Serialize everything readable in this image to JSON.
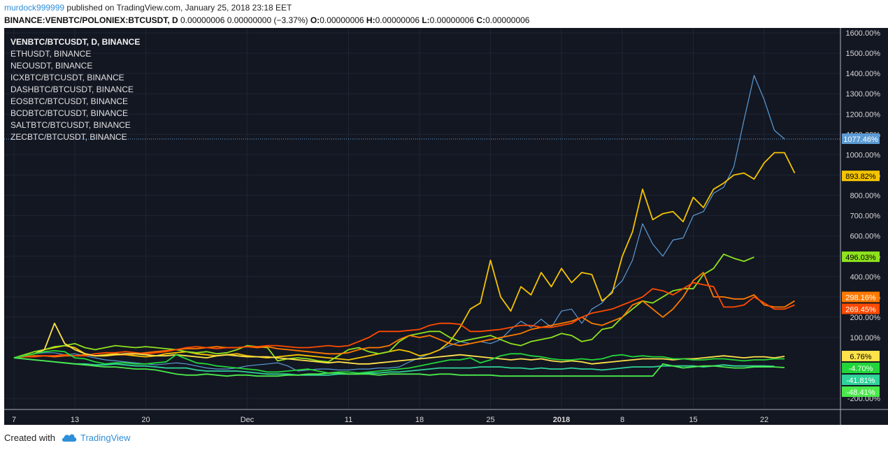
{
  "header": {
    "user": "murdock999999",
    "published_text": " published on TradingView.com, January 25, 2018 23:18 EET",
    "symbol": "BINANCE:VENBTC/POLONIEX:BTCUSDT, D",
    "values": " 0.00000006 0.00000000 (−3.37%) ",
    "ohlc": [
      {
        "k": "O:",
        "v": "0.00000006 "
      },
      {
        "k": "H:",
        "v": "0.00000006 "
      },
      {
        "k": "L:",
        "v": "0.00000006 "
      },
      {
        "k": "C:",
        "v": "0.00000006"
      }
    ]
  },
  "footer": {
    "created_with": "Created with",
    "brand": "TradingView"
  },
  "colors": {
    "background": "#131722",
    "grid": "#1f2434",
    "axis_text": "#d9d9d9",
    "ven": "#5b9bd5",
    "eth": "#f5c400",
    "neo": "#8ee21e",
    "icx": "#ff7a00",
    "dash": "#ff4a00",
    "eos": "#ffe24a",
    "bcd": "#22d63a",
    "salt": "#2fd39a",
    "zec": "#4bea4b"
  },
  "chart_data": {
    "type": "line",
    "legend_position": "top-left",
    "legend": [
      "VENBTC/BTCUSDT, D, BINANCE",
      "ETHUSDT, BINANCE",
      "NEOUSDT, BINANCE",
      "ICXBTC/BTCUSDT, BINANCE",
      "DASHBTC/BTCUSDT, BINANCE",
      "EOSBTC/BTCUSDT, BINANCE",
      "BCDBTC/BTCUSDT, BINANCE",
      "SALTBTC/BTCUSDT, BINANCE",
      "ZECBTC/BTCUSDT, BINANCE"
    ],
    "ylim": [
      -200,
      1600
    ],
    "y_ticks": [
      -200,
      100,
      200,
      300,
      400,
      500,
      600,
      700,
      800,
      900,
      1000,
      1100,
      1200,
      1300,
      1400,
      1500,
      1600
    ],
    "y_tick_labels": [
      "-200.00%",
      "100.00%",
      "200.00%",
      "300.00%",
      "400.00%",
      "500.00%",
      "600.00%",
      "700.00%",
      "800.00%",
      "900.00%",
      "1000.00%",
      "1100.00%",
      "1200.00%",
      "1300.00%",
      "1400.00%",
      "1500.00%",
      "1600.00%"
    ],
    "x_range": [
      6,
      81
    ],
    "x_ticks": [
      {
        "x": 7,
        "label": "7"
      },
      {
        "x": 13,
        "label": "13"
      },
      {
        "x": 20,
        "label": "20"
      },
      {
        "x": 30,
        "label": "Dec"
      },
      {
        "x": 40,
        "label": "11"
      },
      {
        "x": 47,
        "label": "18"
      },
      {
        "x": 54,
        "label": "25"
      },
      {
        "x": 61,
        "label": "2018"
      },
      {
        "x": 67,
        "label": "8"
      },
      {
        "x": 74,
        "label": "15"
      },
      {
        "x": 81,
        "label": "22"
      }
    ],
    "series_x": [
      7,
      8,
      9,
      10,
      11,
      12,
      13,
      14,
      15,
      16,
      17,
      18,
      19,
      20,
      21,
      22,
      23,
      24,
      25,
      26,
      27,
      28,
      29,
      30,
      31,
      32,
      33,
      34,
      35,
      36,
      37,
      38,
      39,
      40,
      41,
      42,
      43,
      44,
      45,
      46,
      47,
      48,
      49,
      50,
      51,
      52,
      53,
      54,
      55,
      56,
      57,
      58,
      59,
      60,
      61,
      62,
      63,
      64,
      65,
      66,
      67,
      68,
      69,
      70,
      71,
      72,
      73,
      74,
      75,
      76,
      77,
      78,
      79,
      80,
      81,
      82,
      83,
      84
    ],
    "series": [
      {
        "name": "VENBTC/BTCUSDT, D, BINANCE",
        "color_key": "ven",
        "width": 1.2,
        "last_label": "1077.46%",
        "values": [
          0,
          10,
          20,
          25,
          25,
          15,
          20,
          10,
          0,
          -10,
          -15,
          -20,
          -25,
          -30,
          -35,
          -30,
          -25,
          -30,
          -40,
          -50,
          -55,
          -55,
          -50,
          -40,
          -35,
          -30,
          -25,
          -40,
          -65,
          -60,
          -55,
          -55,
          -60,
          -60,
          -55,
          -55,
          -50,
          -50,
          -45,
          -20,
          0,
          20,
          40,
          60,
          80,
          70,
          80,
          70,
          90,
          140,
          180,
          150,
          190,
          150,
          230,
          240,
          170,
          240,
          270,
          330,
          380,
          480,
          660,
          560,
          500,
          580,
          590,
          700,
          720,
          810,
          840,
          940,
          1170,
          1390,
          1270,
          1120,
          1077
        ]
      },
      {
        "name": "ETHUSDT, BINANCE",
        "color_key": "eth",
        "width": 1.8,
        "last_label": "893.82%",
        "values": [
          0,
          10,
          20,
          40,
          50,
          60,
          50,
          20,
          10,
          15,
          20,
          15,
          10,
          5,
          10,
          20,
          25,
          30,
          20,
          15,
          10,
          15,
          20,
          10,
          5,
          0,
          5,
          10,
          15,
          10,
          5,
          0,
          -5,
          -10,
          0,
          10,
          20,
          30,
          40,
          30,
          10,
          20,
          40,
          80,
          150,
          240,
          270,
          480,
          300,
          230,
          350,
          310,
          420,
          350,
          440,
          370,
          420,
          410,
          280,
          320,
          500,
          620,
          830,
          680,
          710,
          720,
          670,
          790,
          740,
          830,
          860,
          900,
          910,
          880,
          960,
          1010,
          1010,
          910,
          894
        ]
      },
      {
        "name": "NEOUSDT, BINANCE",
        "color_key": "neo",
        "width": 1.8,
        "last_label": "496.03%",
        "values": [
          0,
          15,
          30,
          40,
          55,
          60,
          70,
          50,
          40,
          50,
          60,
          55,
          50,
          55,
          50,
          45,
          40,
          30,
          25,
          30,
          20,
          25,
          40,
          60,
          55,
          50,
          -15,
          -5,
          0,
          -5,
          -15,
          -20,
          10,
          40,
          50,
          30,
          20,
          30,
          80,
          110,
          120,
          130,
          130,
          100,
          80,
          90,
          100,
          110,
          90,
          70,
          60,
          80,
          90,
          100,
          120,
          110,
          80,
          90,
          140,
          150,
          200,
          240,
          280,
          270,
          300,
          330,
          340,
          340,
          410,
          440,
          510,
          490,
          475,
          496
        ]
      },
      {
        "name": "ICXBTC/BTCUSDT, BINANCE",
        "color_key": "icx",
        "width": 1.8,
        "last_label": "298.16%",
        "values": [
          0,
          5,
          10,
          10,
          5,
          10,
          10,
          15,
          10,
          10,
          15,
          15,
          20,
          25,
          30,
          35,
          40,
          45,
          45,
          50,
          55,
          50,
          50,
          55,
          50,
          55,
          45,
          40,
          35,
          30,
          25,
          20,
          20,
          25,
          40,
          50,
          50,
          60,
          90,
          110,
          100,
          110,
          90,
          70,
          60,
          70,
          80,
          90,
          100,
          110,
          120,
          140,
          150,
          160,
          170,
          180,
          200,
          170,
          160,
          180,
          200,
          260,
          280,
          240,
          200,
          240,
          300,
          380,
          420,
          300,
          300,
          290,
          290,
          310,
          260,
          250,
          250,
          280,
          298
        ]
      },
      {
        "name": "DASHBTC/BTCUSDT, BINANCE",
        "color_key": "dash",
        "width": 1.8,
        "last_label": "269.45%",
        "values": [
          0,
          5,
          5,
          10,
          10,
          15,
          10,
          10,
          20,
          25,
          25,
          30,
          25,
          20,
          25,
          30,
          40,
          50,
          55,
          50,
          45,
          50,
          50,
          55,
          55,
          60,
          60,
          55,
          50,
          50,
          55,
          60,
          55,
          60,
          80,
          100,
          130,
          130,
          130,
          135,
          140,
          160,
          170,
          170,
          165,
          130,
          130,
          135,
          140,
          150,
          160,
          160,
          150,
          150,
          160,
          170,
          200,
          220,
          230,
          240,
          260,
          280,
          300,
          340,
          330,
          310,
          340,
          370,
          360,
          350,
          250,
          250,
          260,
          300,
          270,
          240,
          240,
          260,
          269
        ]
      },
      {
        "name": "EOSBTC/BTCUSDT, BINANCE",
        "color_key": "eos",
        "width": 1.8,
        "last_label": "6.76%",
        "values": [
          0,
          10,
          20,
          40,
          170,
          70,
          40,
          20,
          10,
          10,
          15,
          20,
          20,
          15,
          10,
          10,
          15,
          10,
          5,
          0,
          10,
          15,
          10,
          5,
          5,
          5,
          0,
          -5,
          -10,
          -15,
          -20,
          -25,
          -20,
          -25,
          -30,
          -30,
          -25,
          -20,
          -15,
          -10,
          -5,
          0,
          5,
          10,
          15,
          10,
          5,
          0,
          -5,
          -10,
          -5,
          -10,
          -5,
          -15,
          -20,
          -15,
          -20,
          -30,
          -25,
          -20,
          -15,
          -10,
          -5,
          -5,
          -5,
          -10,
          -5,
          -5,
          0,
          5,
          10,
          5,
          0,
          5,
          5,
          0,
          7
        ]
      },
      {
        "name": "BCDBTC/BTCUSDT, BINANCE",
        "color_key": "bcd",
        "width": 1.8,
        "last_label": "-4.70%",
        "values": [
          0,
          10,
          20,
          30,
          35,
          30,
          0,
          -5,
          -20,
          -30,
          -25,
          -25,
          -30,
          -30,
          -25,
          -20,
          15,
          -5,
          -25,
          -30,
          -40,
          -45,
          -50,
          -55,
          -60,
          -70,
          -70,
          -65,
          -60,
          -55,
          -65,
          -75,
          -70,
          -70,
          -75,
          -70,
          -65,
          -60,
          -55,
          -50,
          -40,
          -30,
          -20,
          -10,
          -10,
          0,
          -25,
          -10,
          10,
          20,
          20,
          10,
          5,
          -5,
          -10,
          -10,
          -5,
          -10,
          -5,
          10,
          15,
          5,
          10,
          5,
          5,
          -5,
          -5,
          -10,
          -10,
          -5,
          -5,
          -10,
          -15,
          -10,
          -10,
          -5,
          -5
        ]
      },
      {
        "name": "SALTBTC/BTCUSDT, BINANCE",
        "color_key": "salt",
        "width": 1.8,
        "last_label": "-41.81%",
        "values": [
          0,
          -5,
          -10,
          -15,
          -20,
          -25,
          -30,
          -30,
          -35,
          -35,
          -30,
          -35,
          -40,
          -40,
          -45,
          -50,
          -50,
          -50,
          -60,
          -65,
          -65,
          -65,
          -65,
          -70,
          -75,
          -80,
          -80,
          -80,
          -85,
          -85,
          -85,
          -85,
          -80,
          -80,
          -80,
          -75,
          -75,
          -70,
          -70,
          -65,
          -60,
          -55,
          -50,
          -50,
          -50,
          -50,
          -45,
          -45,
          -45,
          -50,
          -50,
          -55,
          -50,
          -55,
          -55,
          -50,
          -55,
          -55,
          -60,
          -55,
          -50,
          -45,
          -45,
          -45,
          -40,
          -40,
          -40,
          -40,
          -45,
          -40,
          -35,
          -40,
          -40,
          -40,
          -40,
          -42
        ]
      },
      {
        "name": "ZECBTC/BTCUSDT, BINANCE",
        "color_key": "zec",
        "width": 1.8,
        "last_label": "-48.41%",
        "values": [
          0,
          -5,
          -10,
          -15,
          -20,
          -25,
          -30,
          -35,
          -40,
          -45,
          -45,
          -50,
          -55,
          -55,
          -60,
          -70,
          -80,
          -85,
          -85,
          -80,
          -85,
          -90,
          -85,
          -85,
          -90,
          -90,
          -90,
          -85,
          -85,
          -80,
          -80,
          -75,
          -75,
          -80,
          -80,
          -80,
          -85,
          -80,
          -80,
          -80,
          -80,
          -85,
          -80,
          -80,
          -85,
          -85,
          -85,
          -85,
          -90,
          -90,
          -90,
          -90,
          -90,
          -90,
          -90,
          -90,
          -90,
          -90,
          -90,
          -90,
          -90,
          -90,
          -90,
          -90,
          -30,
          -40,
          -50,
          -45,
          -40,
          -40,
          -45,
          -50,
          -50,
          -45,
          -45,
          -45,
          -48
        ]
      }
    ]
  }
}
